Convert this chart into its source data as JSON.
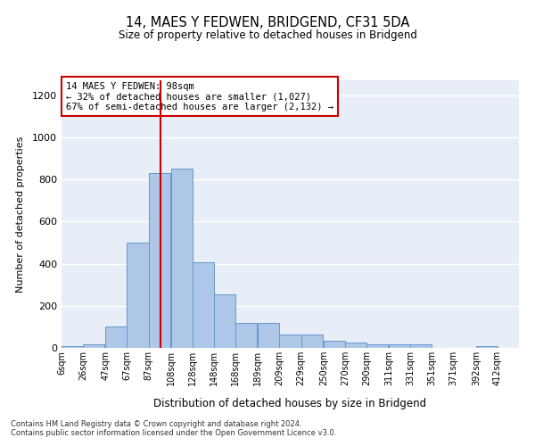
{
  "title": "14, MAES Y FEDWEN, BRIDGEND, CF31 5DA",
  "subtitle": "Size of property relative to detached houses in Bridgend",
  "xlabel": "Distribution of detached houses by size in Bridgend",
  "ylabel": "Number of detached properties",
  "bar_color": "#aec6e8",
  "bar_edge_color": "#6699cc",
  "vline_color": "#cc0000",
  "vline_x": 98,
  "bin_starts": [
    6,
    26,
    47,
    67,
    87,
    108,
    128,
    148,
    168,
    189,
    209,
    229,
    250,
    270,
    290,
    311,
    331,
    351,
    371,
    392,
    412
  ],
  "bin_width": 20,
  "bar_heights": [
    10,
    15,
    100,
    500,
    830,
    850,
    405,
    255,
    120,
    120,
    65,
    65,
    35,
    25,
    15,
    15,
    15,
    0,
    0,
    10,
    0
  ],
  "ylim": [
    0,
    1270
  ],
  "yticks": [
    0,
    200,
    400,
    600,
    800,
    1000,
    1200
  ],
  "annotation_text": "14 MAES Y FEDWEN: 98sqm\n← 32% of detached houses are smaller (1,027)\n67% of semi-detached houses are larger (2,132) →",
  "annotation_box_color": "#ffffff",
  "annotation_box_edge_color": "#cc0000",
  "footer_text": "Contains HM Land Registry data © Crown copyright and database right 2024.\nContains public sector information licensed under the Open Government Licence v3.0.",
  "background_color": "#e8eef8",
  "figure_background": "#ffffff",
  "grid_color": "#ffffff",
  "tick_label_color": "#333333"
}
